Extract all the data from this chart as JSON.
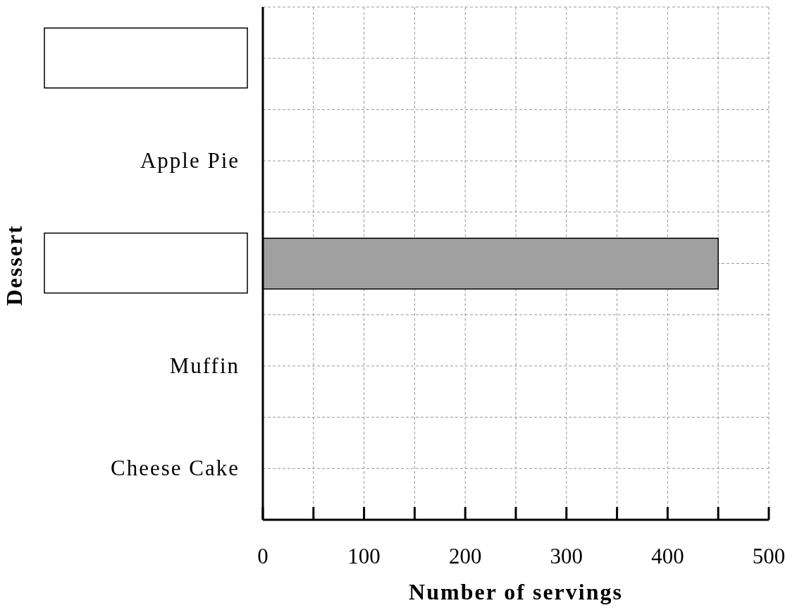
{
  "chart_data": {
    "type": "bar",
    "orientation": "horizontal",
    "xlabel": "Number of servings",
    "ylabel": "Dessert",
    "categories": [
      null,
      "Apple Pie",
      null,
      "Muffin",
      "Cheese Cake"
    ],
    "values": [
      null,
      null,
      450,
      null,
      null
    ],
    "color": "#a0a0a0",
    "xlim": [
      0,
      500
    ],
    "xticks": [
      0,
      {
        "value": 50,
        "label": null
      },
      100,
      {
        "value": 150,
        "label": null
      },
      200,
      {
        "value": 250,
        "label": null
      },
      300,
      {
        "value": 350,
        "label": null
      },
      400,
      {
        "value": 450,
        "label": null
      },
      500
    ],
    "grid": true
  }
}
